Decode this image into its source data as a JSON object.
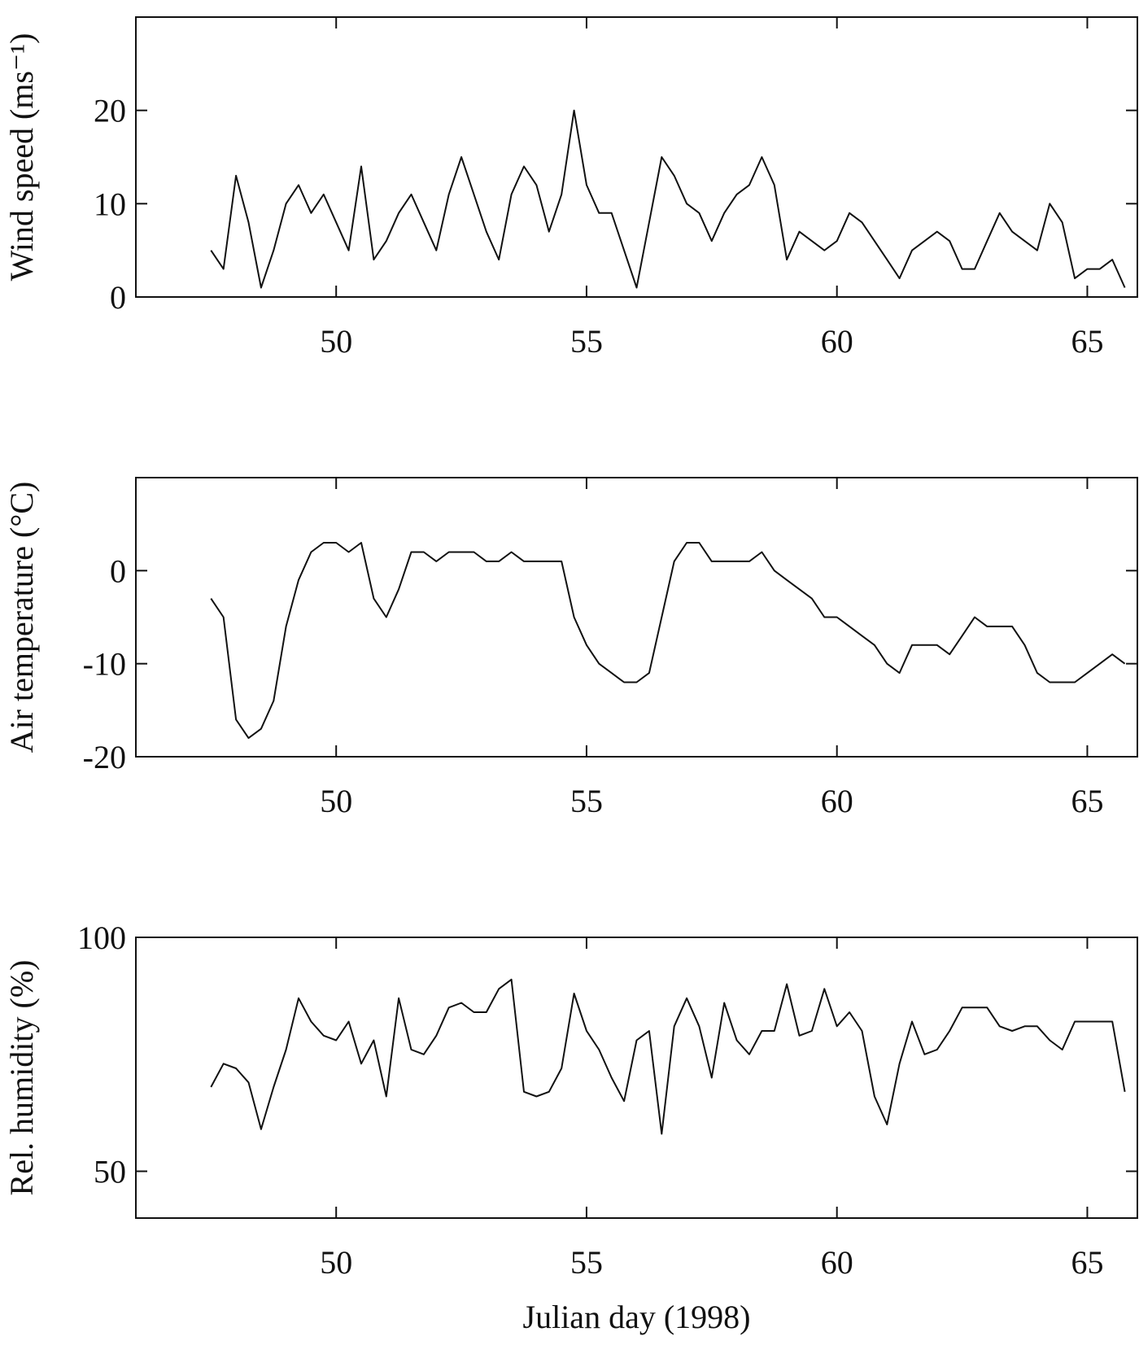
{
  "chart_data": [
    {
      "type": "line",
      "ylabel": "Wind speed (ms⁻¹)",
      "x": [
        47.5,
        47.75,
        48.0,
        48.25,
        48.5,
        48.75,
        49.0,
        49.25,
        49.5,
        49.75,
        50.0,
        50.25,
        50.5,
        50.75,
        51.0,
        51.25,
        51.5,
        51.75,
        52.0,
        52.25,
        52.5,
        52.75,
        53.0,
        53.25,
        53.5,
        53.75,
        54.0,
        54.25,
        54.5,
        54.75,
        55.0,
        55.25,
        55.5,
        55.75,
        56.0,
        56.25,
        56.5,
        56.75,
        57.0,
        57.25,
        57.5,
        57.75,
        58.0,
        58.25,
        58.5,
        58.75,
        59.0,
        59.25,
        59.5,
        59.75,
        60.0,
        60.25,
        60.5,
        60.75,
        61.0,
        61.25,
        61.5,
        61.75,
        62.0,
        62.25,
        62.5,
        62.75,
        63.0,
        63.25,
        63.5,
        63.75,
        64.0,
        64.25,
        64.5,
        64.75,
        65.0,
        65.25,
        65.5,
        65.75
      ],
      "series": [
        {
          "color": "#111111",
          "values": [
            5,
            3,
            13,
            8,
            1,
            5,
            10,
            12,
            9,
            11,
            8,
            5,
            14,
            4,
            6,
            9,
            11,
            8,
            5,
            11,
            15,
            11,
            7,
            4,
            11,
            14,
            12,
            7,
            11,
            20,
            12,
            9,
            9,
            5,
            1,
            8,
            15,
            13,
            10,
            9,
            6,
            9,
            11,
            12,
            15,
            12,
            4,
            7,
            6,
            5,
            6,
            9,
            8,
            6,
            4,
            2,
            5,
            6,
            7,
            6,
            3,
            3,
            6,
            9,
            7,
            6,
            5,
            10,
            8,
            2,
            3,
            3,
            4,
            1
          ]
        }
      ],
      "xlim": [
        46,
        66
      ],
      "xticks": [
        50,
        55,
        60,
        65
      ],
      "ylim": [
        0,
        30
      ],
      "yticks": [
        0,
        10,
        20
      ]
    },
    {
      "type": "line",
      "ylabel": "Air temperature (°C)",
      "x": [
        47.5,
        47.75,
        48.0,
        48.25,
        48.5,
        48.75,
        49.0,
        49.25,
        49.5,
        49.75,
        50.0,
        50.25,
        50.5,
        50.75,
        51.0,
        51.25,
        51.5,
        51.75,
        52.0,
        52.25,
        52.5,
        52.75,
        53.0,
        53.25,
        53.5,
        53.75,
        54.0,
        54.25,
        54.5,
        54.75,
        55.0,
        55.25,
        55.5,
        55.75,
        56.0,
        56.25,
        56.5,
        56.75,
        57.0,
        57.25,
        57.5,
        57.75,
        58.0,
        58.25,
        58.5,
        58.75,
        59.0,
        59.25,
        59.5,
        59.75,
        60.0,
        60.25,
        60.5,
        60.75,
        61.0,
        61.25,
        61.5,
        61.75,
        62.0,
        62.25,
        62.5,
        62.75,
        63.0,
        63.25,
        63.5,
        63.75,
        64.0,
        64.25,
        64.5,
        64.75,
        65.0,
        65.25,
        65.5,
        65.75
      ],
      "series": [
        {
          "color": "#111111",
          "values": [
            -3,
            -5,
            -16,
            -18,
            -17,
            -14,
            -6,
            -1,
            2,
            3,
            3,
            2,
            3,
            -3,
            -5,
            -2,
            2,
            2,
            1,
            2,
            2,
            2,
            1,
            1,
            2,
            1,
            1,
            1,
            1,
            -5,
            -8,
            -10,
            -11,
            -12,
            -12,
            -11,
            -5,
            1,
            3,
            3,
            1,
            1,
            1,
            1,
            2,
            0,
            -1,
            -2,
            -3,
            -5,
            -5,
            -6,
            -7,
            -8,
            -10,
            -11,
            -8,
            -8,
            -8,
            -9,
            -7,
            -5,
            -6,
            -6,
            -6,
            -8,
            -11,
            -12,
            -12,
            -12,
            -11,
            -10,
            -9,
            -10
          ]
        }
      ],
      "xlim": [
        46,
        66
      ],
      "xticks": [
        50,
        55,
        60,
        65
      ],
      "ylim": [
        -20,
        10
      ],
      "yticks": [
        -20,
        -10,
        0
      ]
    },
    {
      "type": "line",
      "ylabel": "Rel. humidity (%)",
      "xlabel": "Julian day (1998)",
      "x": [
        47.5,
        47.75,
        48.0,
        48.25,
        48.5,
        48.75,
        49.0,
        49.25,
        49.5,
        49.75,
        50.0,
        50.25,
        50.5,
        50.75,
        51.0,
        51.25,
        51.5,
        51.75,
        52.0,
        52.25,
        52.5,
        52.75,
        53.0,
        53.25,
        53.5,
        53.75,
        54.0,
        54.25,
        54.5,
        54.75,
        55.0,
        55.25,
        55.5,
        55.75,
        56.0,
        56.25,
        56.5,
        56.75,
        57.0,
        57.25,
        57.5,
        57.75,
        58.0,
        58.25,
        58.5,
        58.75,
        59.0,
        59.25,
        59.5,
        59.75,
        60.0,
        60.25,
        60.5,
        60.75,
        61.0,
        61.25,
        61.5,
        61.75,
        62.0,
        62.25,
        62.5,
        62.75,
        63.0,
        63.25,
        63.5,
        63.75,
        64.0,
        64.25,
        64.5,
        64.75,
        65.0,
        65.25,
        65.5,
        65.75
      ],
      "series": [
        {
          "color": "#111111",
          "values": [
            68,
            73,
            72,
            69,
            59,
            68,
            76,
            87,
            82,
            79,
            78,
            82,
            73,
            78,
            66,
            87,
            76,
            75,
            79,
            85,
            86,
            84,
            84,
            89,
            91,
            67,
            66,
            67,
            72,
            88,
            80,
            76,
            70,
            65,
            78,
            80,
            58,
            81,
            87,
            81,
            70,
            86,
            78,
            75,
            80,
            80,
            90,
            79,
            80,
            89,
            81,
            84,
            80,
            66,
            60,
            73,
            82,
            75,
            76,
            80,
            85,
            85,
            85,
            81,
            80,
            81,
            81,
            78,
            76,
            82,
            82,
            82,
            82,
            67
          ]
        }
      ],
      "xlim": [
        46,
        66
      ],
      "xticks": [
        50,
        55,
        60,
        65
      ],
      "ylim": [
        40,
        100
      ],
      "yticks": [
        50,
        100
      ]
    }
  ]
}
